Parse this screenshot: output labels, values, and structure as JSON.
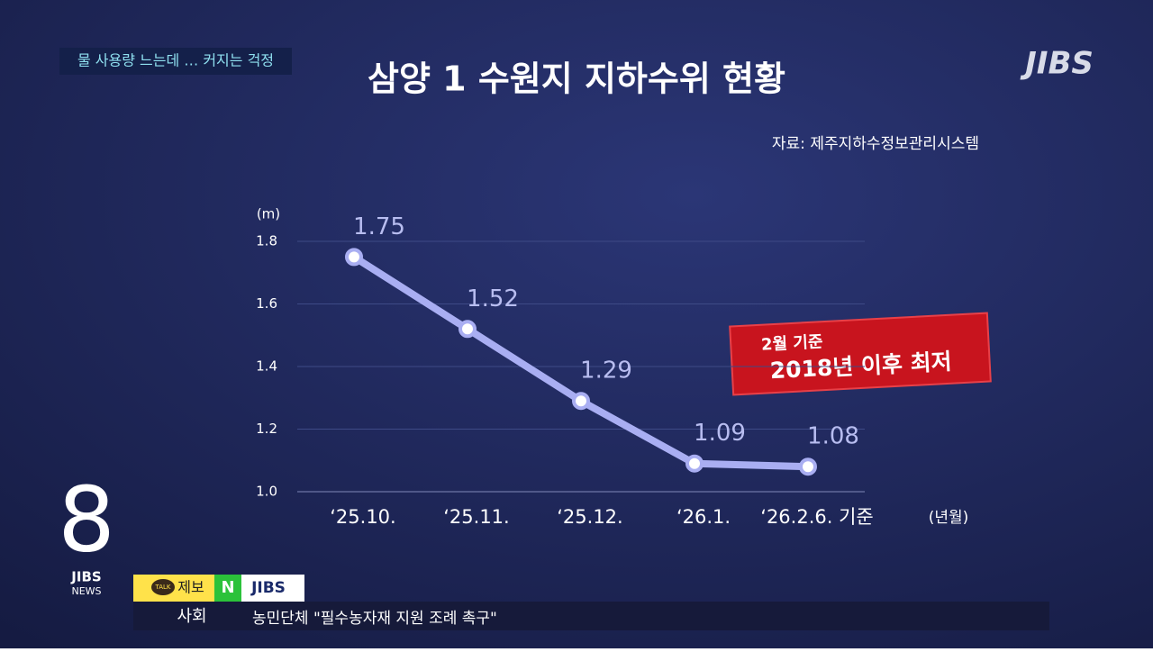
{
  "chart_data": {
    "type": "line",
    "title": "삼양 1 수원지 지하수위 현황",
    "source": "자료: 제주지하수정보관리시스템",
    "y_label": "(m)",
    "x_label": "(년월)",
    "categories": [
      "‘25.10.",
      "‘25.11.",
      "‘25.12.",
      "‘26.1.",
      "‘26.2.6. 기준"
    ],
    "values": [
      1.75,
      1.52,
      1.29,
      1.09,
      1.08
    ],
    "color": "#a9aef2",
    "ylim": [
      1.0,
      1.8
    ],
    "yticks": [
      {
        "value": 1.0,
        "label": "1.0"
      },
      1.2,
      1.4,
      1.6,
      1.8
    ],
    "grid": true,
    "annotation": {
      "line1": "2월 기준",
      "line2": "2018년 이후 최저"
    }
  },
  "overlay": {
    "headline_tag": "물 사용량 느는데 … 커지는 걱정",
    "logo": "JIBS",
    "channel_number": "8",
    "channel_name": "JIBS",
    "channel_sub": "NEWS",
    "ticker": {
      "talk": "TALK",
      "report": "제보",
      "n": "N",
      "brand": "JIBS",
      "section": "사회",
      "headline": "농민단체 \"필수농자재 지원 조례 촉구\""
    }
  }
}
